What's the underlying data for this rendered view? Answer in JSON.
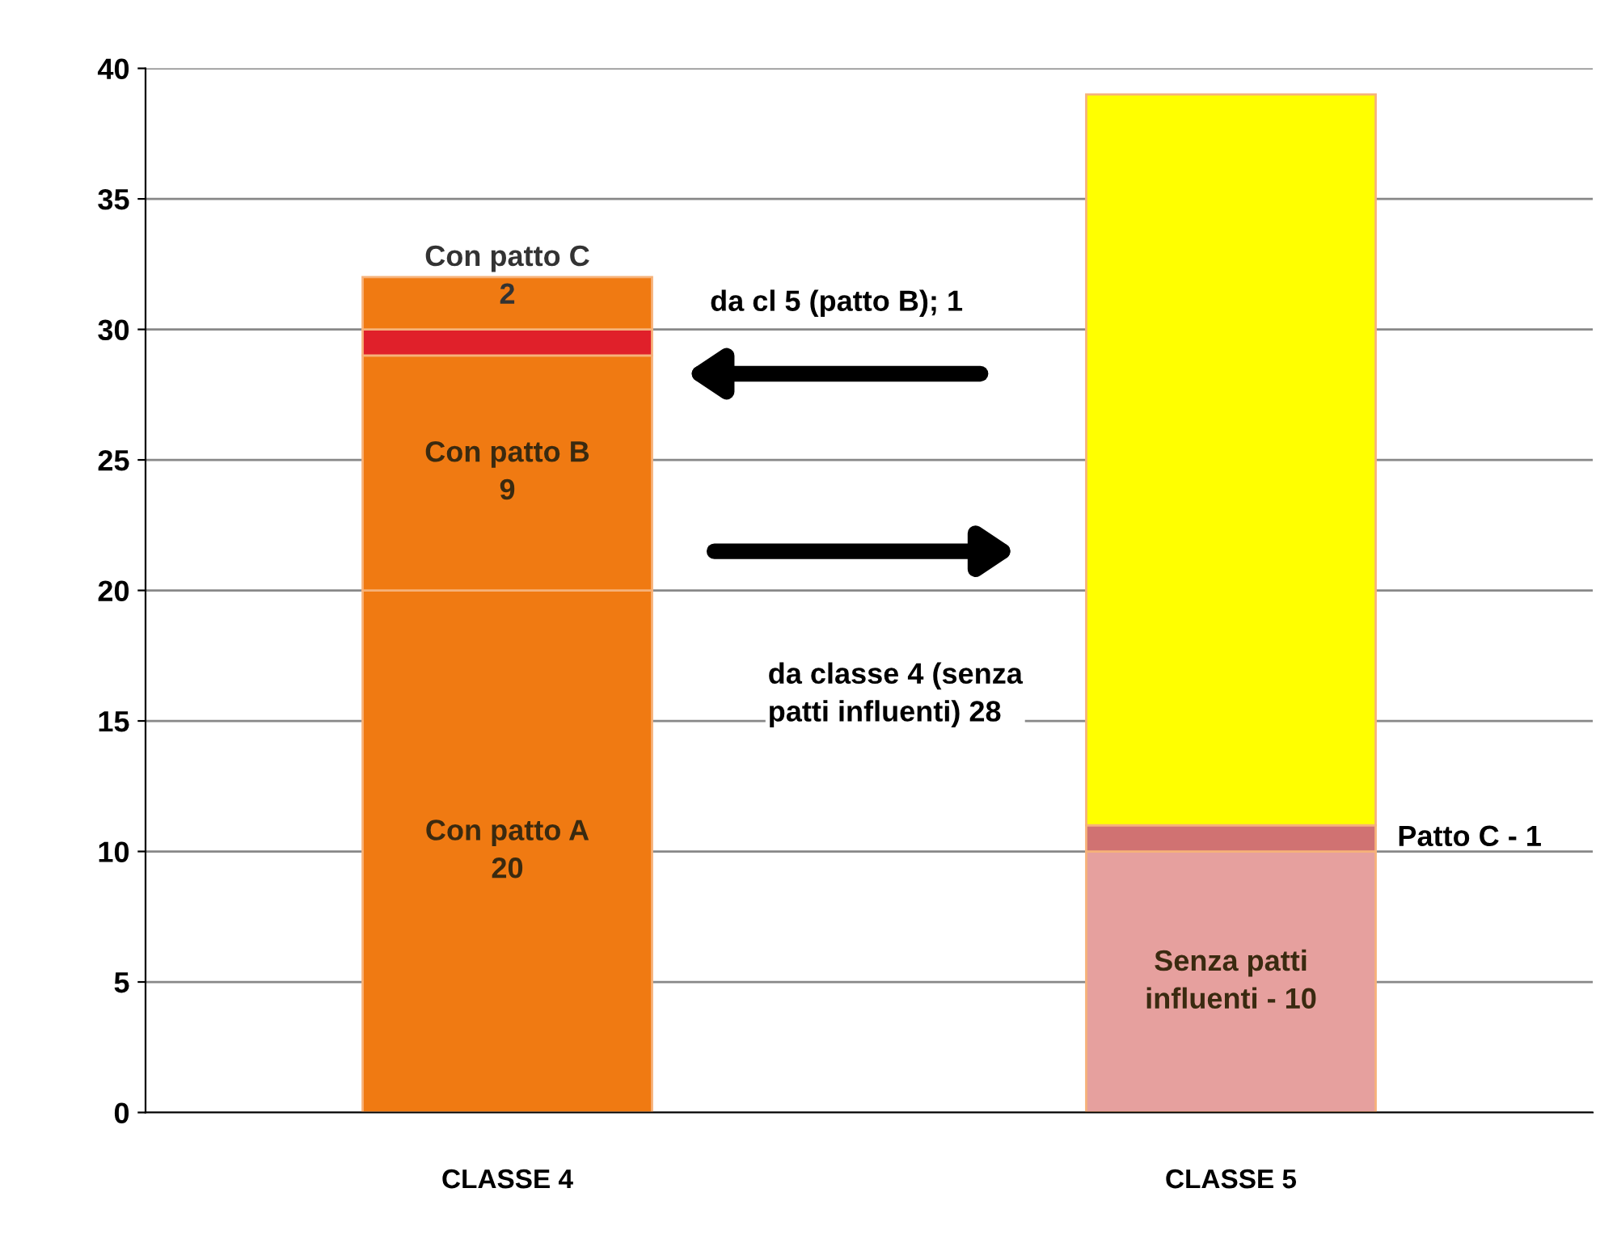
{
  "chart_data": {
    "type": "bar",
    "stacked": true,
    "categories": [
      "CLASSE 4",
      "CLASSE 5"
    ],
    "series": [
      {
        "color": "#f07a12",
        "values": [
          20,
          null
        ],
        "value_labels": [
          "Con patto A\n20",
          null
        ]
      },
      {
        "color": "#f07a12",
        "values": [
          9,
          null
        ],
        "value_labels": [
          "Con patto B\n9",
          null
        ]
      },
      {
        "color": "#e0202a",
        "values": [
          1,
          null
        ],
        "value_labels": [
          null,
          null
        ]
      },
      {
        "color": "#f07a12",
        "values": [
          2,
          null
        ],
        "value_labels": [
          "Con patto C\n2",
          null
        ]
      },
      {
        "color": "#e6a09e",
        "values": [
          null,
          10
        ],
        "value_labels": [
          null,
          null
        ]
      },
      {
        "color": "#d07272",
        "values": [
          null,
          1
        ],
        "value_labels": [
          null,
          null
        ]
      },
      {
        "color": "#ffff00",
        "values": [
          null,
          28
        ],
        "value_labels": [
          null,
          null
        ]
      }
    ],
    "annotations": [
      "da cl 5 (patto B); 1",
      "da classe 4 (senza\npatti influenti) 28",
      "Patto C - 1",
      "Senza patti\ninfluenti - 10"
    ],
    "ylim": [
      0,
      40
    ],
    "yticks": [
      0,
      5,
      10,
      15,
      20,
      25,
      30,
      35,
      40
    ],
    "grid": "y",
    "legend": false
  }
}
